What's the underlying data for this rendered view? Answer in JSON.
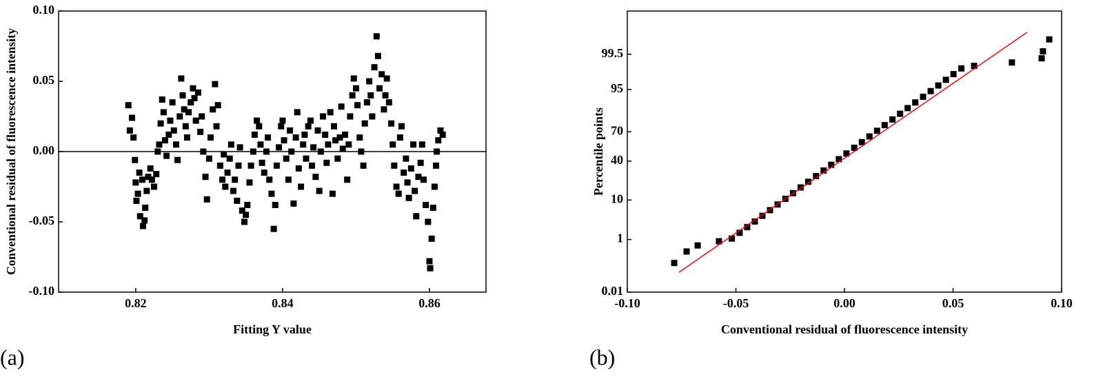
{
  "chart_data": [
    {
      "type": "scatter",
      "panel_label": "(a)",
      "x_label": "Fitting Y value",
      "y_label": "Conventional residual of  fluorescence intensity",
      "color": "#000000",
      "marker": "square",
      "reference_line": 0,
      "xlim": [
        0.8095,
        0.8677
      ],
      "ylim": [
        -0.1,
        0.1
      ],
      "xticks": [
        0.82,
        0.84,
        0.86
      ],
      "yticks": [
        {
          "value": -0.1,
          "label": "-0.10"
        },
        -0.05,
        {
          "value": 0,
          "label": "0.00"
        },
        0.05,
        {
          "value": 0.1,
          "label": "0.10"
        }
      ],
      "x": [
        0.819,
        0.8192,
        0.8195,
        0.8197,
        0.8199,
        0.82,
        0.8201,
        0.8203,
        0.8205,
        0.8206,
        0.8209,
        0.821,
        0.8212,
        0.8213,
        0.8215,
        0.8217,
        0.822,
        0.8222,
        0.8225,
        0.8228,
        0.823,
        0.8232,
        0.8234,
        0.8236,
        0.8238,
        0.824,
        0.8242,
        0.8245,
        0.8247,
        0.825,
        0.8252,
        0.8255,
        0.8257,
        0.826,
        0.8262,
        0.8264,
        0.8266,
        0.8268,
        0.827,
        0.8272,
        0.8275,
        0.8278,
        0.828,
        0.8282,
        0.8285,
        0.8288,
        0.829,
        0.8292,
        0.8295,
        0.8297,
        0.83,
        0.8302,
        0.8305,
        0.8308,
        0.831,
        0.8312,
        0.8315,
        0.8318,
        0.832,
        0.8322,
        0.8325,
        0.8328,
        0.833,
        0.8333,
        0.8335,
        0.8338,
        0.834,
        0.8342,
        0.8345,
        0.8348,
        0.835,
        0.8352,
        0.8355,
        0.8357,
        0.836,
        0.8362,
        0.8365,
        0.8368,
        0.837,
        0.8372,
        0.8375,
        0.8378,
        0.838,
        0.8382,
        0.8385,
        0.8388,
        0.839,
        0.8392,
        0.8395,
        0.8398,
        0.84,
        0.8402,
        0.8405,
        0.8408,
        0.841,
        0.8412,
        0.8415,
        0.8418,
        0.842,
        0.8422,
        0.8425,
        0.8428,
        0.843,
        0.8432,
        0.8435,
        0.8438,
        0.844,
        0.8442,
        0.8445,
        0.8448,
        0.845,
        0.8452,
        0.8455,
        0.8458,
        0.846,
        0.8462,
        0.8465,
        0.8468,
        0.847,
        0.8472,
        0.8475,
        0.8478,
        0.848,
        0.8482,
        0.8485,
        0.8488,
        0.849,
        0.8492,
        0.8495,
        0.8497,
        0.85,
        0.8502,
        0.8505,
        0.8507,
        0.851,
        0.8512,
        0.8515,
        0.8518,
        0.852,
        0.8522,
        0.8525,
        0.8528,
        0.853,
        0.8532,
        0.8535,
        0.8538,
        0.854,
        0.8542,
        0.8545,
        0.8548,
        0.855,
        0.8552,
        0.8555,
        0.8558,
        0.856,
        0.8562,
        0.8565,
        0.8568,
        0.857,
        0.8572,
        0.8575,
        0.8578,
        0.858,
        0.8582,
        0.8585,
        0.8588,
        0.859,
        0.8592,
        0.8595,
        0.8598,
        0.86,
        0.8601,
        0.8603,
        0.8605,
        0.8607,
        0.8609,
        0.861,
        0.8612,
        0.8615,
        0.8618
      ],
      "values": [
        0.033,
        0.015,
        0.024,
        0.01,
        -0.006,
        -0.022,
        -0.035,
        -0.03,
        -0.015,
        -0.046,
        -0.02,
        -0.053,
        -0.049,
        -0.04,
        -0.028,
        -0.018,
        -0.012,
        -0.02,
        -0.025,
        -0.016,
        0.0,
        0.005,
        0.02,
        0.037,
        0.028,
        0.008,
        -0.003,
        0.012,
        0.022,
        0.035,
        0.015,
        0.005,
        -0.006,
        0.025,
        0.052,
        0.04,
        0.03,
        0.018,
        0.01,
        0.028,
        0.035,
        0.045,
        0.038,
        0.022,
        0.042,
        0.014,
        0.025,
        0.0,
        -0.018,
        -0.034,
        -0.005,
        0.01,
        0.03,
        0.048,
        0.018,
        0.033,
        -0.01,
        -0.02,
        -0.002,
        -0.025,
        -0.015,
        -0.005,
        0.005,
        -0.028,
        -0.02,
        -0.035,
        -0.01,
        0.003,
        -0.042,
        -0.05,
        -0.045,
        -0.038,
        -0.022,
        -0.01,
        0.0,
        0.012,
        0.022,
        0.018,
        0.005,
        -0.008,
        -0.015,
        0.0,
        0.01,
        -0.02,
        -0.03,
        -0.055,
        -0.038,
        -0.01,
        0.003,
        0.018,
        0.022,
        0.008,
        -0.005,
        -0.02,
        0.015,
        0.0,
        -0.037,
        0.01,
        0.028,
        -0.012,
        -0.025,
        0.005,
        0.012,
        -0.005,
        0.018,
        0.022,
        -0.01,
        0.003,
        -0.018,
        0.015,
        -0.028,
        0.0,
        0.025,
        0.012,
        -0.008,
        0.005,
        0.028,
        -0.03,
        0.018,
        0.008,
        -0.005,
        0.01,
        0.032,
        0.002,
        0.012,
        -0.02,
        0.005,
        0.025,
        0.04,
        0.052,
        0.045,
        0.033,
        0.01,
        0.0,
        -0.01,
        0.02,
        0.035,
        0.05,
        0.04,
        0.025,
        0.06,
        0.082,
        0.068,
        0.045,
        0.055,
        0.03,
        0.04,
        0.052,
        0.035,
        0.02,
        0.005,
        -0.01,
        -0.025,
        -0.03,
        0.01,
        0.018,
        -0.015,
        -0.005,
        -0.022,
        -0.033,
        -0.012,
        0.005,
        -0.028,
        -0.046,
        -0.018,
        -0.008,
        0.005,
        -0.02,
        -0.038,
        -0.05,
        -0.078,
        -0.083,
        -0.062,
        -0.04,
        -0.025,
        -0.01,
        0.0,
        0.008,
        0.015,
        0.012
      ]
    },
    {
      "type": "scatter",
      "panel_label": "(b)",
      "x_label": "Conventional residual of fluorescence intensity",
      "y_label": "Percentile points",
      "color": "#000000",
      "marker": "square",
      "yscale": "probability",
      "xlim": [
        -0.1,
        0.1
      ],
      "ylim": [
        0.01,
        99.99
      ],
      "xticks": [
        {
          "value": -0.1,
          "label": "-0.10"
        },
        -0.05,
        {
          "value": 0,
          "label": "0.00"
        },
        0.05,
        {
          "value": 0.1,
          "label": "0.10"
        }
      ],
      "yticks": [
        0.01,
        1,
        10,
        40,
        70,
        95,
        99.5
      ],
      "x": [
        -0.0784,
        -0.0727,
        -0.0676,
        -0.0578,
        -0.0519,
        -0.0483,
        -0.0448,
        -0.0413,
        -0.0378,
        -0.0343,
        -0.0308,
        -0.0272,
        -0.0237,
        -0.0202,
        -0.0167,
        -0.0131,
        -0.0096,
        -0.0061,
        -0.0026,
        0.0009,
        0.0045,
        0.008,
        0.0115,
        0.015,
        0.0185,
        0.0221,
        0.0256,
        0.0291,
        0.0326,
        0.0362,
        0.0397,
        0.0432,
        0.0467,
        0.0502,
        0.0538,
        0.0597,
        0.0771,
        0.0908,
        0.0914,
        0.0943
      ],
      "values": [
        0.16,
        0.41,
        0.65,
        0.88,
        1.07,
        1.58,
        2.28,
        3.22,
        4.46,
        6.06,
        8.08,
        10.56,
        13.57,
        17.11,
        21.19,
        25.78,
        30.85,
        36.32,
        42.07,
        48.01,
        53.98,
        59.87,
        65.54,
        70.88,
        75.8,
        80.23,
        84.13,
        87.49,
        90.32,
        92.65,
        94.52,
        95.99,
        97.13,
        97.98,
        98.61,
        98.83,
        99.08,
        99.32,
        99.6,
        99.85
      ],
      "fit_line": {
        "color": "#ff0000",
        "x": [
          -0.0762,
          0.0841
        ],
        "values": [
          0.07,
          99.92
        ]
      }
    }
  ]
}
